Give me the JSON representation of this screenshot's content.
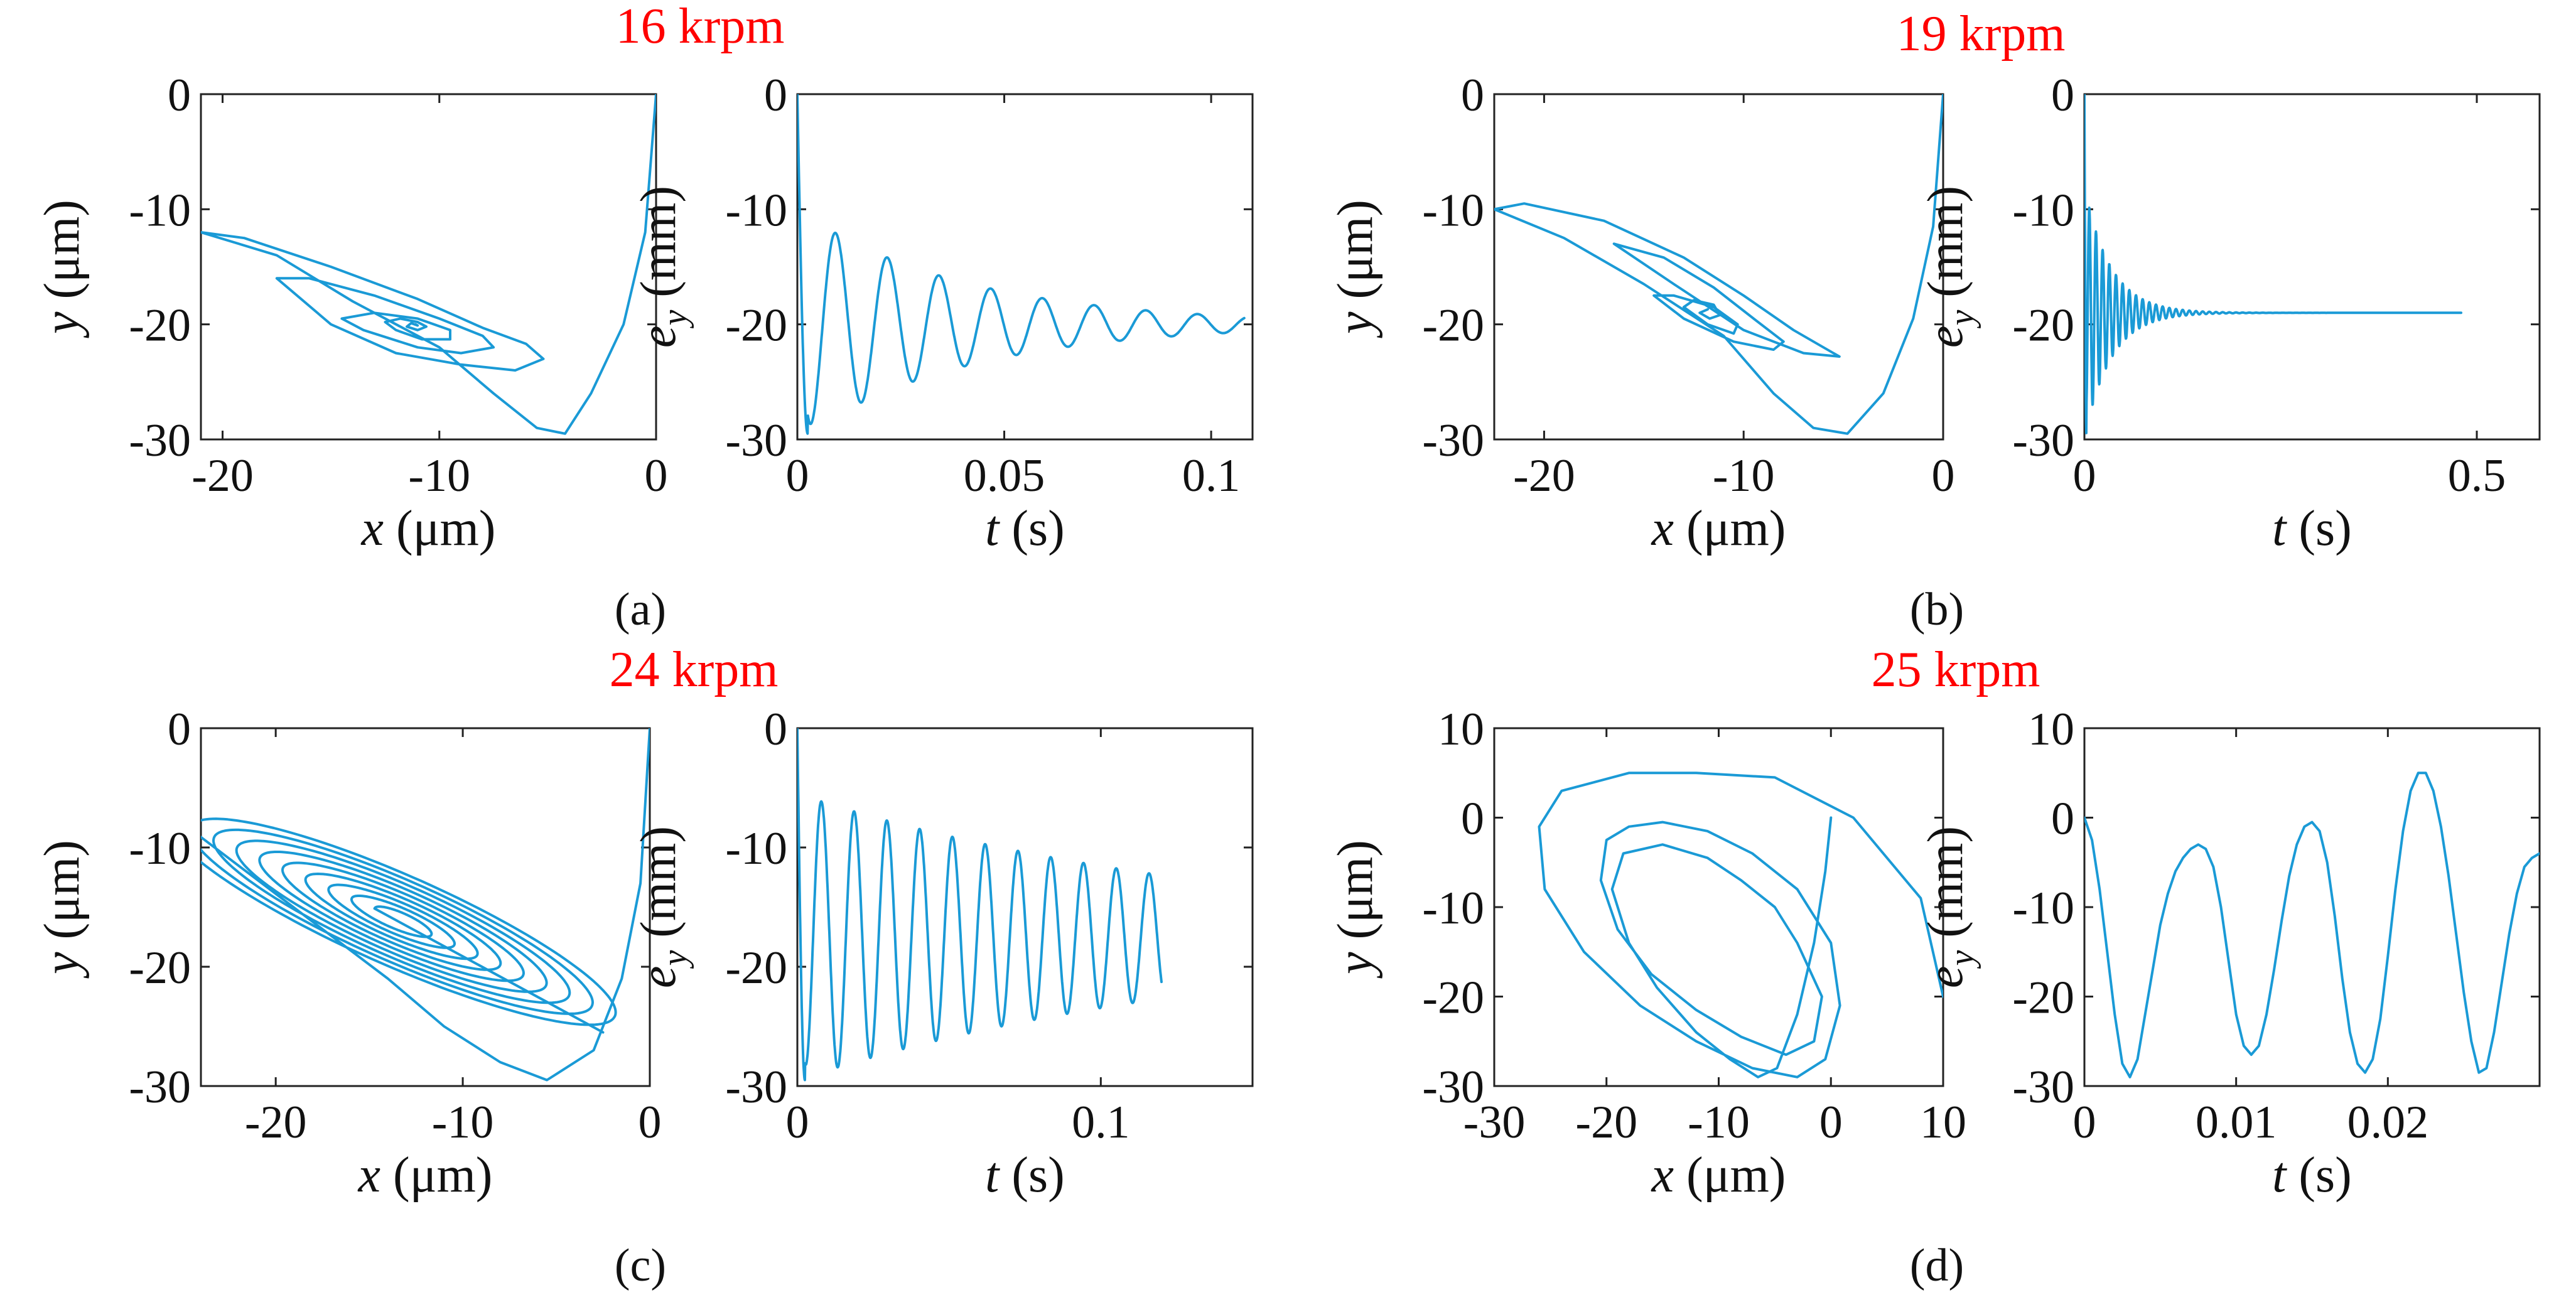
{
  "colors": {
    "curve": "#1a9ad6",
    "speed_label": "#ff0000",
    "axis": "#222222"
  },
  "panels": [
    {
      "caption": "(a)",
      "caption_letter": "a",
      "speed": "16 krpm",
      "orbit": {
        "type": "line",
        "xlabel_var": "x",
        "xlabel_unit": " (μm)",
        "ylabel_var": "y",
        "ylabel_unit": " (μm)",
        "xlim": [
          -21,
          0
        ],
        "ylim": [
          -30,
          0
        ],
        "xticks": [
          -20,
          -10,
          0
        ],
        "xtick_labels": [
          "-20",
          "-10",
          "0"
        ],
        "yticks": [
          -30,
          -20,
          -10,
          0
        ],
        "ytick_labels": [
          "-30",
          "-20",
          "-10",
          "0"
        ],
        "series": [
          {
            "x": [
              0,
              -0.5,
              -1.5,
              -3,
              -4.2,
              -5.5,
              -7.5,
              -10,
              -14,
              -17.5,
              -21,
              -19,
              -15,
              -11,
              -8,
              -6,
              -5.2,
              -6.5,
              -9,
              -12,
              -15,
              -17.5,
              -16,
              -13,
              -10,
              -8,
              -7.5,
              -9,
              -11,
              -13.5,
              -14.5,
              -13,
              -11,
              -9.5,
              -9.5,
              -10.8,
              -12,
              -12.5,
              -11.8,
              -11,
              -10.6,
              -11,
              -11.5,
              -11.3,
              -11,
              -11.1
            ],
            "y": [
              0,
              -12,
              -20,
              -26,
              -29.5,
              -29,
              -26,
              -22,
              -18,
              -14,
              -12,
              -12.5,
              -15,
              -17.8,
              -20.3,
              -21.7,
              -23,
              -24,
              -23.5,
              -22.5,
              -20,
              -16,
              -16,
              -17.5,
              -19.5,
              -21,
              -22,
              -22.5,
              -22,
              -20.5,
              -19.5,
              -19,
              -19.5,
              -20.5,
              -21.3,
              -21.3,
              -20.5,
              -19.8,
              -19.5,
              -19.8,
              -20.2,
              -20.5,
              -20.2,
              -19.9,
              -20.1,
              -20
            ]
          }
        ]
      },
      "time": {
        "type": "line",
        "xlabel_var": "t",
        "xlabel_unit": " (s)",
        "ylabel_var": "e",
        "ylabel_sub": "y",
        "ylabel_unit": " (mm)",
        "xlim": [
          0,
          0.11
        ],
        "ylim": [
          -30,
          0
        ],
        "xticks": [
          0,
          0.05,
          0.1
        ],
        "xtick_labels": [
          "0",
          "0.05",
          "0.1"
        ],
        "yticks": [
          -30,
          -20,
          -10,
          0
        ],
        "ytick_labels": [
          "-30",
          "-20",
          "-10",
          "0"
        ],
        "series": [
          {
            "signal": {
              "t_end": 0.108,
              "a0": 0,
              "a_end": -20,
              "amp": 10,
              "decay": 25,
              "period": 0.0125,
              "phase": 0.003,
              "jitter": 0
            }
          }
        ]
      }
    },
    {
      "caption": "(b)",
      "caption_letter": "b",
      "speed": "19 krpm",
      "orbit": {
        "type": "line",
        "xlabel_var": "x",
        "xlabel_unit": " (μm)",
        "ylabel_var": "y",
        "ylabel_unit": " (μm)",
        "xlim": [
          -22.5,
          0
        ],
        "ylim": [
          -30,
          0
        ],
        "xticks": [
          -20,
          -10,
          0
        ],
        "xtick_labels": [
          "-20",
          "-10",
          "0"
        ],
        "yticks": [
          -30,
          -20,
          -10,
          0
        ],
        "ytick_labels": [
          "-30",
          "-20",
          "-10",
          "0"
        ],
        "series": [
          {
            "x": [
              0,
              -0.5,
              -1.5,
              -3,
              -4.8,
              -6.5,
              -8.5,
              -11,
              -15,
              -19,
              -22.5,
              -21,
              -17,
              -13,
              -10,
              -7.5,
              -6,
              -5.2,
              -7,
              -10,
              -13.5,
              -16.5,
              -14,
              -11.5,
              -9.5,
              -8,
              -8.5,
              -10.5,
              -13,
              -14.5,
              -13.5,
              -11.5,
              -10.3,
              -10.5,
              -11.8,
              -13,
              -12.5,
              -11.5,
              -11.2,
              -11.7,
              -12.2,
              -11.8
            ],
            "y": [
              0,
              -11.5,
              -19.5,
              -26,
              -29.5,
              -29,
              -26,
              -21,
              -16.5,
              -12.5,
              -10,
              -9.5,
              -11,
              -14.2,
              -17.5,
              -20.5,
              -22,
              -22.8,
              -22.5,
              -20.5,
              -16.5,
              -13,
              -14.2,
              -16.8,
              -19.5,
              -21.5,
              -22.2,
              -21.5,
              -19.5,
              -17.5,
              -17.5,
              -18.5,
              -20,
              -20.8,
              -20,
              -18.5,
              -17.9,
              -18.3,
              -19.2,
              -19.5,
              -19,
              -18.7
            ]
          }
        ]
      },
      "time": {
        "type": "line",
        "xlabel_var": "t",
        "xlabel_unit": " (s)",
        "ylabel_var": "e",
        "ylabel_sub": "y",
        "ylabel_unit": " (mm)",
        "xlim": [
          0,
          0.58
        ],
        "ylim": [
          -30,
          0
        ],
        "xticks": [
          0,
          0.5
        ],
        "xtick_labels": [
          "0",
          "0.5"
        ],
        "yticks": [
          -30,
          -20,
          -10,
          0
        ],
        "ytick_labels": [
          "-30",
          "-20",
          "-10",
          "0"
        ],
        "series": [
          {
            "signal": {
              "t_end": 0.48,
              "a0": 0,
              "a_end": -19,
              "amp": 11,
              "decay": 30,
              "period": 0.0085,
              "phase": 0.002,
              "jitter": 0
            }
          }
        ]
      }
    },
    {
      "caption": "(c)",
      "caption_letter": "c",
      "speed": "24 krpm",
      "orbit": {
        "type": "line",
        "xlabel_var": "x",
        "xlabel_unit": " (μm)",
        "ylabel_var": "y",
        "ylabel_unit": " (μm)",
        "xlim": [
          -24,
          0
        ],
        "ylim": [
          -30,
          0
        ],
        "xticks": [
          -20,
          -10,
          0
        ],
        "xtick_labels": [
          "-20",
          "-10",
          "0"
        ],
        "yticks": [
          -30,
          -20,
          -10,
          0
        ],
        "ytick_labels": [
          "-30",
          "-20",
          "-10",
          "0"
        ],
        "series": [
          {
            "spiral": {
              "entry": {
                "x": [
                  0,
                  -0.5,
                  -1.5,
                  -3,
                  -5.5,
                  -8,
                  -11,
                  -14
                ],
                "y": [
                  0,
                  -13,
                  -21,
                  -27,
                  -29.5,
                  -28,
                  -25,
                  -21
                ]
              },
              "center": [
                -13.5,
                -16
              ],
              "dir": [
                0.62,
                -0.45
              ],
              "r0": 15,
              "r1": 1.5,
              "width0": 3.6,
              "width1": 0.5,
              "turns": 9,
              "corner": [
                -2.5,
                -25.5
              ]
            }
          }
        ]
      },
      "time": {
        "type": "line",
        "xlabel_var": "t",
        "xlabel_unit": " (s)",
        "ylabel_var": "e",
        "ylabel_sub": "y",
        "ylabel_unit": " (mm)",
        "xlim": [
          0,
          0.15
        ],
        "ylim": [
          -30,
          0
        ],
        "xticks": [
          0,
          0.1
        ],
        "xtick_labels": [
          "0",
          "0.1"
        ],
        "yticks": [
          -30,
          -20,
          -10,
          0
        ],
        "ytick_labels": [
          "-30",
          "-20",
          "-10",
          "0"
        ],
        "series": [
          {
            "signal": {
              "t_end": 0.12,
              "a0": 0,
              "a_end": -17.5,
              "amp": 12,
              "decay": 7,
              "period": 0.0108,
              "phase": 0.0025,
              "jitter": 0
            }
          }
        ]
      }
    },
    {
      "caption": "(d)",
      "caption_letter": "d",
      "speed": "25 krpm",
      "orbit": {
        "type": "line",
        "xlabel_var": "x",
        "xlabel_unit": " (μm)",
        "ylabel_var": "y",
        "ylabel_unit": " (μm)",
        "xlim": [
          -30,
          10
        ],
        "ylim": [
          -30,
          10
        ],
        "xticks": [
          -30,
          -20,
          -10,
          0,
          10
        ],
        "xtick_labels": [
          "-30",
          "-20",
          "-10",
          "0",
          "10"
        ],
        "yticks": [
          -30,
          -20,
          -10,
          0,
          10
        ],
        "ytick_labels": [
          "-30",
          "-20",
          "-10",
          "0",
          "10"
        ],
        "series": [
          {
            "x": [
              0,
              -0.5,
              -1.5,
              -3,
              -4.8,
              -6.5,
              -9,
              -12,
              -15.5,
              -18,
              -19.5,
              -18.5,
              -15,
              -11,
              -8,
              -5,
              -3,
              -0.8,
              -1.5,
              -4,
              -8,
              -12,
              -16,
              -19,
              -20.5,
              -20,
              -18,
              -15,
              -11,
              -7,
              -3,
              0,
              0.8,
              -0.5,
              -3,
              -7,
              -12,
              -17,
              -22,
              -25.5,
              -26,
              -24,
              -18,
              -12,
              -5,
              2,
              8,
              10
            ],
            "y": [
              0,
              -6,
              -14,
              -22,
              -28,
              -29,
              -27,
              -24,
              -19,
              -14,
              -8,
              -4,
              -3,
              -4.5,
              -7,
              -10,
              -14,
              -20,
              -25,
              -26.5,
              -24.5,
              -21.5,
              -17.5,
              -12.5,
              -7,
              -2.5,
              -1,
              -0.5,
              -1.5,
              -4,
              -8,
              -14,
              -21,
              -27,
              -29,
              -28,
              -25,
              -21,
              -15,
              -8,
              -1,
              3,
              5,
              5,
              4.5,
              0,
              -9,
              -20
            ]
          }
        ]
      },
      "time": {
        "type": "line",
        "xlabel_var": "t",
        "xlabel_unit": " (s)",
        "ylabel_var": "e",
        "ylabel_sub": "y",
        "ylabel_unit": " (mm)",
        "xlim": [
          0,
          0.03
        ],
        "ylim": [
          -30,
          10
        ],
        "xticks": [
          0,
          0.01,
          0.02
        ],
        "xtick_labels": [
          "0",
          "0.01",
          "0.02"
        ],
        "yticks": [
          -30,
          -20,
          -10,
          0,
          10
        ],
        "ytick_labels": [
          "-30",
          "-20",
          "-10",
          "0",
          "10"
        ],
        "series": [
          {
            "t": [
              0,
              0.0005,
              0.001,
              0.0015,
              0.002,
              0.0025,
              0.003,
              0.0035,
              0.004,
              0.0045,
              0.005,
              0.0055,
              0.006,
              0.0065,
              0.007,
              0.0075,
              0.008,
              0.0085,
              0.009,
              0.0095,
              0.01,
              0.0105,
              0.011,
              0.0115,
              0.012,
              0.0125,
              0.013,
              0.0135,
              0.014,
              0.0145,
              0.015,
              0.0155,
              0.016,
              0.0165,
              0.017,
              0.0175,
              0.018,
              0.0185,
              0.019,
              0.0195,
              0.02,
              0.0205,
              0.021,
              0.0215,
              0.022,
              0.0225,
              0.023,
              0.0235,
              0.024,
              0.0245,
              0.025,
              0.0255,
              0.026,
              0.0265,
              0.027,
              0.0275,
              0.028,
              0.0285,
              0.029,
              0.0295,
              0.03
            ],
            "y": [
              0,
              -2.5,
              -8,
              -15,
              -22,
              -27.5,
              -29,
              -27,
              -22,
              -17,
              -12,
              -8.5,
              -6,
              -4.5,
              -3.5,
              -3,
              -3.5,
              -5.5,
              -10,
              -16,
              -22,
              -25.5,
              -26.5,
              -25.5,
              -22,
              -17,
              -11.5,
              -6.5,
              -3,
              -1,
              -0.5,
              -1.5,
              -5,
              -11,
              -18,
              -24,
              -27.5,
              -28.5,
              -27,
              -22.5,
              -15.5,
              -8,
              -1.5,
              3,
              5,
              5,
              3,
              -1,
              -6.5,
              -13,
              -19.5,
              -25,
              -28.5,
              -28,
              -24,
              -18.5,
              -13,
              -8.5,
              -5.5,
              -4.5,
              -4
            ]
          }
        ]
      }
    }
  ]
}
